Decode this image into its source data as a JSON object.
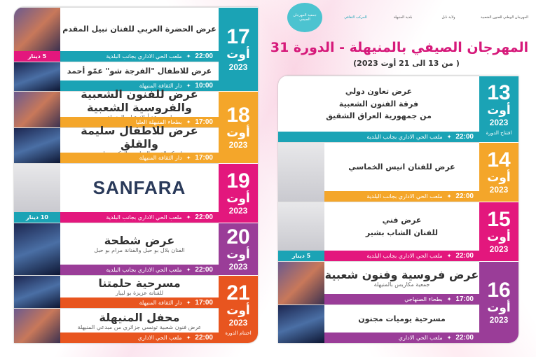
{
  "header": {
    "logos": [
      "المهرجان الوطني للفنون الشعبية",
      "ولاية نابل",
      "بلدية المنيهلة",
      "المركب الثقافي",
      "جمعية المهرجان الصيفي"
    ],
    "title": "المهرجان الصيفي بالمنيهلة - الدورة 31",
    "subtitle": "( من 13 الى 21 أوت 2023)"
  },
  "colors": {
    "teal": "#1ba3b5",
    "orange": "#f4a62a",
    "pink": "#e3177d",
    "purple": "#9a3d98",
    "red": "#e8551f",
    "title": "#d6197a"
  },
  "days": [
    {
      "num": "13",
      "month": "أوت",
      "year": "2023",
      "note": "افتتاح الدورة",
      "color": "#1ba3b5",
      "events": [
        {
          "titles": [
            "عرض تعاون دولي",
            "فرقة الفنون الشعبية",
            "من جمهورية العراق الشقيق"
          ],
          "time": "22:00",
          "venue": "ملعب الحي الاداري بجانب البلدية",
          "image": false
        }
      ]
    },
    {
      "num": "14",
      "month": "أوت",
      "year": "2023",
      "color": "#f4a62a",
      "events": [
        {
          "titles": [
            "عرض للفنان انيس الخماسي"
          ],
          "time": "22:00",
          "venue": "ملعب الحي الاداري بجانب البلدية",
          "image": "portrait"
        }
      ]
    },
    {
      "num": "15",
      "month": "أوت",
      "year": "2023",
      "color": "#e3177d",
      "events": [
        {
          "titles": [
            "عرض فني",
            "للفنان الشاب بشير"
          ],
          "time": "22:00",
          "venue": "ملعب الحي الاداري بجانب البلدية",
          "price": "5 دينار",
          "price_color": "#1ba3b5",
          "image": "portrait"
        }
      ]
    },
    {
      "num": "16",
      "month": "أوت",
      "year": "2023",
      "color": "#9a3d98",
      "events": [
        {
          "titles": [
            "عرض فروسية وفنون شعبية"
          ],
          "subtitle": "جمعية مكاريس بالمنيهلة",
          "time": "17:00",
          "venue": "بطحاء الصنهاجي",
          "image": "photo"
        },
        {
          "titles": [
            "مسرحية يوميات مجنون"
          ],
          "time": "22:00",
          "venue": "ملعب الحي الاداري",
          "image": "poster"
        }
      ]
    },
    {
      "num": "17",
      "month": "أوت",
      "year": "2023",
      "color": "#1ba3b5",
      "events": [
        {
          "titles": [
            "عرض الحضرة العربي للفنان نبيل المقدم"
          ],
          "time": "22:00",
          "venue": "ملعب الحي الاداري بجانب البلدية",
          "price": "5 دينار",
          "price_color": "#e3177d",
          "image": "photo"
        },
        {
          "titles": [
            "عرض للاطفال \"الفرجة شو\" عمّو أحمد"
          ],
          "time": "10:00",
          "venue": "دار الثقافة المنيهلة",
          "image": "poster"
        }
      ]
    },
    {
      "num": "18",
      "month": "أوت",
      "year": "2023",
      "color": "#f4a62a",
      "events": [
        {
          "titles": [
            "عرض للفنون الشعبية والفروسية الشعبية"
          ],
          "subtitle": "لمجموعة أولاد عيار بالمنيهلة",
          "time": "17:00",
          "venue": "بطحاء المنيهلة العليا",
          "image": "photo"
        },
        {
          "titles": [
            "عرض للاطفال سليمة والقلق"
          ],
          "subtitle": "لمركز الفنون الدرامية والركحية بباجة",
          "time": "17:00",
          "venue": "دار الثقافة المنيهلة",
          "image": "poster"
        }
      ]
    },
    {
      "num": "19",
      "month": "أوت",
      "year": "2023",
      "color": "#e3177d",
      "events": [
        {
          "titles": [
            "SANFARA"
          ],
          "huge": true,
          "time": "22:00",
          "venue": "ملعب الحي الاداري بجانب البلدية",
          "price": "10 دينار",
          "price_color": "#1ba3b5",
          "image": "portrait"
        }
      ]
    },
    {
      "num": "20",
      "month": "أوت",
      "year": "2023",
      "color": "#9a3d98",
      "events": [
        {
          "titles": [
            "عرض شطحة"
          ],
          "subtitle": "الفنان بلال بو حبل والفنانة مرام بو حبل",
          "time": "22:00",
          "venue": "ملعب الحي الاداري بجانب البلدية",
          "image": "poster"
        }
      ]
    },
    {
      "num": "21",
      "month": "أوت",
      "year": "2023",
      "note": "اختتام الدورة",
      "color": "#e8551f",
      "events": [
        {
          "titles": [
            "مسرحية حلمتنا"
          ],
          "subtitle": "للفنانة عزيزة بو لبيار",
          "time": "17:00",
          "venue": "دار الثقافة المنيهلة",
          "image": "poster"
        },
        {
          "titles": [
            "محفل المنيهلة"
          ],
          "subtitle": "عرض فنون شعبية تونسي جزائري من مبدعي المنيهلة",
          "time": "22:00",
          "venue": "ملعب الحي الاداري",
          "image": "photo"
        }
      ]
    }
  ]
}
